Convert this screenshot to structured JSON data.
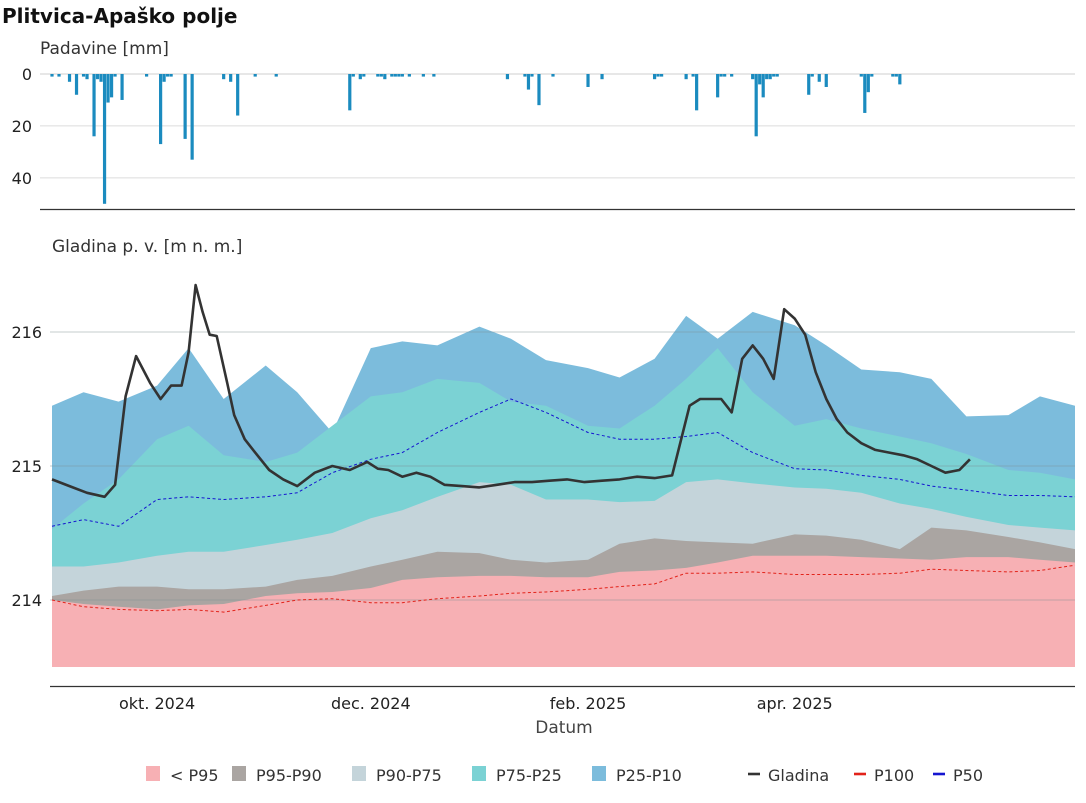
{
  "title": "Plitvica-Apaško polje",
  "chart_data": [
    {
      "type": "bar",
      "ylabel": "Padavine [mm]",
      "yticks": [
        0,
        20,
        40
      ],
      "ylim": [
        0,
        52
      ],
      "inverted_y": true,
      "color": "#1b8bbf",
      "x_range": [
        "2024-09-01",
        "2025-06-20"
      ],
      "dates": [
        "2024-09-01",
        "2024-09-03",
        "2024-09-06",
        "2024-09-08",
        "2024-09-10",
        "2024-09-11",
        "2024-09-13",
        "2024-09-14",
        "2024-09-15",
        "2024-09-16",
        "2024-09-17",
        "2024-09-18",
        "2024-09-19",
        "2024-09-21",
        "2024-09-28",
        "2024-10-02",
        "2024-10-03",
        "2024-10-04",
        "2024-10-05",
        "2024-10-09",
        "2024-10-11",
        "2024-10-20",
        "2024-10-22",
        "2024-10-24",
        "2024-10-29",
        "2024-11-04",
        "2024-11-25",
        "2024-11-26",
        "2024-11-28",
        "2024-11-29",
        "2024-12-03",
        "2024-12-04",
        "2024-12-05",
        "2024-12-07",
        "2024-12-08",
        "2024-12-09",
        "2024-12-10",
        "2024-12-12",
        "2024-12-16",
        "2024-12-19",
        "2025-01-09",
        "2025-01-14",
        "2025-01-15",
        "2025-01-16",
        "2025-01-18",
        "2025-01-22",
        "2025-02-01",
        "2025-02-05",
        "2025-02-20",
        "2025-02-21",
        "2025-02-22",
        "2025-03-01",
        "2025-03-03",
        "2025-03-04",
        "2025-03-10",
        "2025-03-11",
        "2025-03-12",
        "2025-03-14",
        "2025-03-20",
        "2025-03-21",
        "2025-03-22",
        "2025-03-23",
        "2025-03-24",
        "2025-03-25",
        "2025-03-26",
        "2025-03-27",
        "2025-04-05",
        "2025-04-06",
        "2025-04-08",
        "2025-04-10",
        "2025-04-20",
        "2025-04-21",
        "2025-04-22",
        "2025-04-23",
        "2025-04-29",
        "2025-04-30",
        "2025-05-01"
      ],
      "values": [
        1,
        1,
        3,
        8,
        1,
        2,
        24,
        2,
        3,
        50,
        11,
        9,
        1,
        10,
        1,
        27,
        3,
        1,
        1,
        25,
        33,
        2,
        3,
        16,
        1,
        1,
        14,
        1,
        2,
        1,
        1,
        1,
        2,
        1,
        1,
        1,
        1,
        1,
        1,
        1,
        2,
        1,
        6,
        1,
        12,
        1,
        5,
        2,
        2,
        1,
        1,
        2,
        1,
        14,
        9,
        1,
        1,
        1,
        2,
        24,
        4,
        9,
        2,
        2,
        1,
        1,
        8,
        1,
        3,
        5,
        1,
        15,
        7,
        1,
        1,
        1,
        4
      ],
      "grid": true
    },
    {
      "type": "area",
      "ylabel": "Gladina p. v. [m n. m.]",
      "xlabel": "Datum",
      "xticks": [
        "okt. 2024",
        "dec. 2024",
        "feb. 2025",
        "apr. 2025"
      ],
      "xtick_dates": [
        "2024-10-01",
        "2024-12-01",
        "2025-02-01",
        "2025-04-01"
      ],
      "yticks": [
        214,
        215,
        216
      ],
      "ylim": [
        213.35,
        216.45
      ],
      "x_range": [
        "2024-09-01",
        "2025-06-20"
      ],
      "band_floor": 213.5,
      "band_dates": [
        "2024-09-01",
        "2024-09-10",
        "2024-09-20",
        "2024-10-01",
        "2024-10-10",
        "2024-10-20",
        "2024-11-01",
        "2024-11-10",
        "2024-11-20",
        "2024-12-01",
        "2024-12-10",
        "2024-12-20",
        "2025-01-01",
        "2025-01-10",
        "2025-01-20",
        "2025-02-01",
        "2025-02-10",
        "2025-02-20",
        "2025-03-01",
        "2025-03-10",
        "2025-03-20",
        "2025-04-01",
        "2025-04-10",
        "2025-04-20",
        "2025-05-01",
        "2025-05-10",
        "2025-05-20",
        "2025-06-01",
        "2025-06-10",
        "2025-06-20"
      ],
      "bands": [
        {
          "name": "< P95",
          "color": "#f7b0b4",
          "upper": [
            214.0,
            213.97,
            213.95,
            213.93,
            213.96,
            213.97,
            214.03,
            214.05,
            214.06,
            214.09,
            214.15,
            214.17,
            214.18,
            214.18,
            214.17,
            214.17,
            214.21,
            214.22,
            214.24,
            214.28,
            214.33,
            214.33,
            214.33,
            214.32,
            214.31,
            214.3,
            214.32,
            214.32,
            214.3,
            214.28
          ]
        },
        {
          "name": "P95-P90",
          "color": "#aaa5a2",
          "upper": [
            214.03,
            214.07,
            214.1,
            214.1,
            214.08,
            214.08,
            214.1,
            214.15,
            214.18,
            214.25,
            214.3,
            214.36,
            214.35,
            214.3,
            214.28,
            214.3,
            214.42,
            214.46,
            214.44,
            214.43,
            214.42,
            214.49,
            214.48,
            214.45,
            214.38,
            214.54,
            214.52,
            214.47,
            214.43,
            214.38
          ]
        },
        {
          "name": "P90-P75",
          "color": "#c4d4da",
          "upper": [
            214.25,
            214.25,
            214.28,
            214.33,
            214.36,
            214.36,
            214.41,
            214.45,
            214.5,
            214.61,
            214.67,
            214.77,
            214.88,
            214.86,
            214.75,
            214.75,
            214.73,
            214.74,
            214.88,
            214.9,
            214.87,
            214.84,
            214.83,
            214.8,
            214.72,
            214.68,
            214.62,
            214.56,
            214.54,
            214.52
          ]
        },
        {
          "name": "P75-P25",
          "color": "#7bd2d4",
          "upper": [
            214.53,
            214.72,
            214.9,
            215.2,
            215.3,
            215.08,
            215.03,
            215.1,
            215.3,
            215.52,
            215.55,
            215.65,
            215.62,
            215.48,
            215.45,
            215.3,
            215.28,
            215.45,
            215.65,
            215.88,
            215.55,
            215.3,
            215.35,
            215.28,
            215.22,
            215.17,
            215.09,
            214.97,
            214.95,
            214.9
          ]
        },
        {
          "name": "P25-P10",
          "color": "#7cbcdc",
          "upper": [
            215.45,
            215.55,
            215.48,
            215.6,
            215.88,
            215.5,
            215.75,
            215.55,
            215.25,
            215.88,
            215.93,
            215.9,
            216.04,
            215.95,
            215.79,
            215.73,
            215.66,
            215.8,
            216.12,
            215.95,
            216.15,
            216.05,
            215.9,
            215.72,
            215.7,
            215.65,
            215.37,
            215.38,
            215.52,
            215.45
          ]
        }
      ],
      "series": [
        {
          "name": "Gladina",
          "color": "#333333",
          "style": "solid",
          "dates": [
            "2024-09-01",
            "2024-09-06",
            "2024-09-11",
            "2024-09-16",
            "2024-09-19",
            "2024-09-22",
            "2024-09-25",
            "2024-09-29",
            "2024-10-02",
            "2024-10-05",
            "2024-10-08",
            "2024-10-10",
            "2024-10-12",
            "2024-10-14",
            "2024-10-16",
            "2024-10-18",
            "2024-10-21",
            "2024-10-23",
            "2024-10-26",
            "2024-10-29",
            "2024-11-02",
            "2024-11-06",
            "2024-11-10",
            "2024-11-15",
            "2024-11-20",
            "2024-11-25",
            "2024-11-30",
            "2024-12-03",
            "2024-12-06",
            "2024-12-10",
            "2024-12-14",
            "2024-12-18",
            "2024-12-22",
            "2024-12-27",
            "2025-01-01",
            "2025-01-06",
            "2025-01-11",
            "2025-01-16",
            "2025-01-21",
            "2025-01-26",
            "2025-01-31",
            "2025-02-05",
            "2025-02-10",
            "2025-02-15",
            "2025-02-20",
            "2025-02-25",
            "2025-03-02",
            "2025-03-05",
            "2025-03-08",
            "2025-03-11",
            "2025-03-14",
            "2025-03-17",
            "2025-03-20",
            "2025-03-23",
            "2025-03-26",
            "2025-03-29",
            "2025-04-01",
            "2025-04-04",
            "2025-04-07",
            "2025-04-10",
            "2025-04-13",
            "2025-04-16",
            "2025-04-20",
            "2025-04-24",
            "2025-04-28",
            "2025-05-02",
            "2025-05-06",
            "2025-05-10",
            "2025-05-14",
            "2025-05-18",
            "2025-05-21"
          ],
          "values": [
            214.9,
            214.85,
            214.8,
            214.77,
            214.86,
            215.52,
            215.82,
            215.62,
            215.5,
            215.6,
            215.6,
            215.85,
            216.35,
            216.15,
            215.98,
            215.97,
            215.62,
            215.38,
            215.2,
            215.1,
            214.97,
            214.9,
            214.85,
            214.95,
            215.0,
            214.97,
            215.03,
            214.98,
            214.97,
            214.92,
            214.95,
            214.92,
            214.86,
            214.85,
            214.84,
            214.86,
            214.88,
            214.88,
            214.89,
            214.9,
            214.88,
            214.89,
            214.9,
            214.92,
            214.91,
            214.93,
            215.45,
            215.5,
            215.5,
            215.5,
            215.4,
            215.8,
            215.9,
            215.8,
            215.65,
            216.17,
            216.1,
            215.98,
            215.7,
            215.5,
            215.35,
            215.25,
            215.17,
            215.12,
            215.1,
            215.08,
            215.05,
            215.0,
            214.95,
            214.97,
            215.05
          ]
        },
        {
          "name": "P100",
          "color": "#e2231a",
          "style": "dashed",
          "dates": [
            "2024-09-01",
            "2024-09-10",
            "2024-09-20",
            "2024-10-01",
            "2024-10-10",
            "2024-10-20",
            "2024-11-01",
            "2024-11-10",
            "2024-11-20",
            "2024-12-01",
            "2024-12-10",
            "2024-12-20",
            "2025-01-01",
            "2025-01-10",
            "2025-01-20",
            "2025-02-01",
            "2025-02-10",
            "2025-02-20",
            "2025-03-01",
            "2025-03-10",
            "2025-03-20",
            "2025-04-01",
            "2025-04-10",
            "2025-04-20",
            "2025-05-01",
            "2025-05-10",
            "2025-05-20",
            "2025-06-01",
            "2025-06-10",
            "2025-06-20"
          ],
          "values": [
            214.0,
            213.95,
            213.93,
            213.92,
            213.93,
            213.91,
            213.96,
            214.0,
            214.01,
            213.98,
            213.98,
            214.01,
            214.03,
            214.05,
            214.06,
            214.08,
            214.1,
            214.12,
            214.2,
            214.2,
            214.21,
            214.19,
            214.19,
            214.19,
            214.2,
            214.23,
            214.22,
            214.21,
            214.22,
            214.26
          ]
        },
        {
          "name": "P50",
          "color": "#1515d0",
          "style": "dashed",
          "dates": [
            "2024-09-01",
            "2024-09-10",
            "2024-09-20",
            "2024-10-01",
            "2024-10-10",
            "2024-10-20",
            "2024-11-01",
            "2024-11-10",
            "2024-11-20",
            "2024-12-01",
            "2024-12-10",
            "2024-12-20",
            "2025-01-01",
            "2025-01-10",
            "2025-01-20",
            "2025-02-01",
            "2025-02-10",
            "2025-02-20",
            "2025-03-01",
            "2025-03-10",
            "2025-03-20",
            "2025-04-01",
            "2025-04-10",
            "2025-04-20",
            "2025-05-01",
            "2025-05-10",
            "2025-05-20",
            "2025-06-01",
            "2025-06-10",
            "2025-06-20"
          ],
          "values": [
            214.55,
            214.6,
            214.55,
            214.75,
            214.77,
            214.75,
            214.77,
            214.8,
            214.95,
            215.05,
            215.1,
            215.25,
            215.4,
            215.5,
            215.4,
            215.25,
            215.2,
            215.2,
            215.22,
            215.25,
            215.1,
            214.98,
            214.97,
            214.93,
            214.9,
            214.85,
            214.82,
            214.78,
            214.78,
            214.77
          ]
        }
      ],
      "grid": true
    }
  ],
  "legend": {
    "placement": "bottom",
    "items": [
      {
        "label": "< P95",
        "kind": "swatch",
        "color": "#f7b0b4"
      },
      {
        "label": "P95-P90",
        "kind": "swatch",
        "color": "#aaa5a2"
      },
      {
        "label": "P90-P75",
        "kind": "swatch",
        "color": "#c4d4da"
      },
      {
        "label": "P75-P25",
        "kind": "swatch",
        "color": "#7bd2d4"
      },
      {
        "label": "P25-P10",
        "kind": "swatch",
        "color": "#7cbcdc"
      },
      {
        "label": "Gladina",
        "kind": "line",
        "color": "#333333"
      },
      {
        "label": "P100",
        "kind": "line",
        "color": "#e2231a"
      },
      {
        "label": "P50",
        "kind": "line",
        "color": "#1515d0"
      }
    ]
  }
}
